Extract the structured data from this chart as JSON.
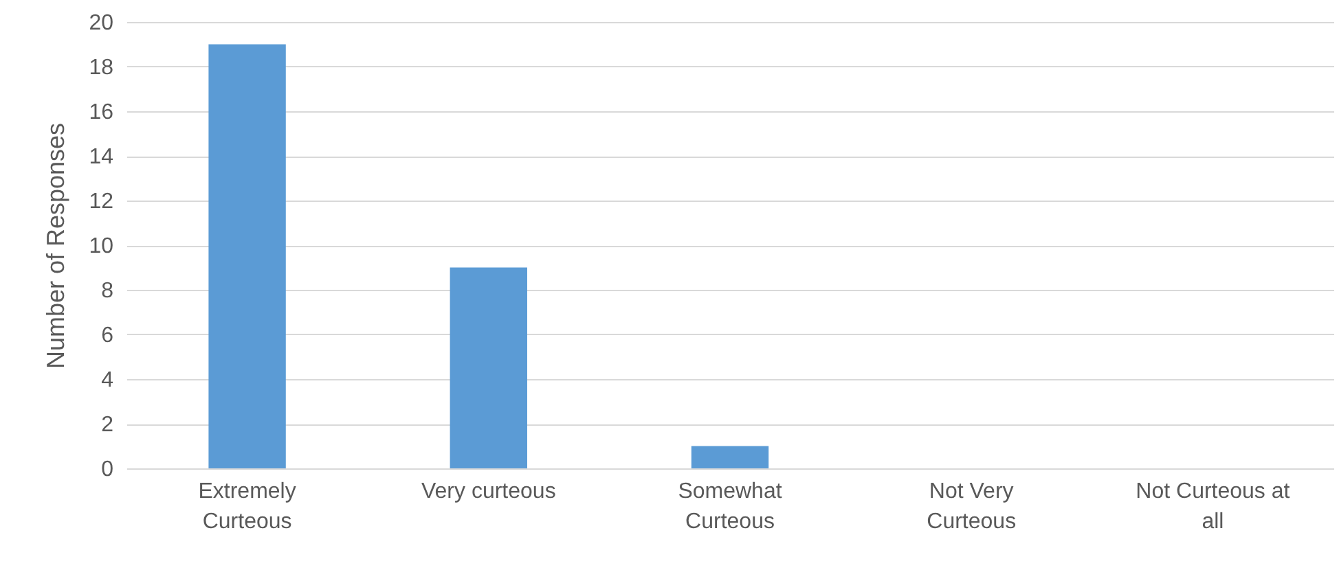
{
  "chart_data": {
    "type": "bar",
    "ylabel": "Number of Responses",
    "categories": [
      "Extremely Curteous",
      "Very curteous",
      "Somewhat Curteous",
      "Not Very Curteous",
      "Not Curteous at all"
    ],
    "values": [
      19,
      9,
      1,
      0,
      0
    ],
    "color": "#5b9bd5",
    "ylim": [
      0,
      20
    ],
    "yticks": [
      0,
      2,
      4,
      6,
      8,
      10,
      12,
      14,
      16,
      18,
      20
    ],
    "grid": "y"
  }
}
